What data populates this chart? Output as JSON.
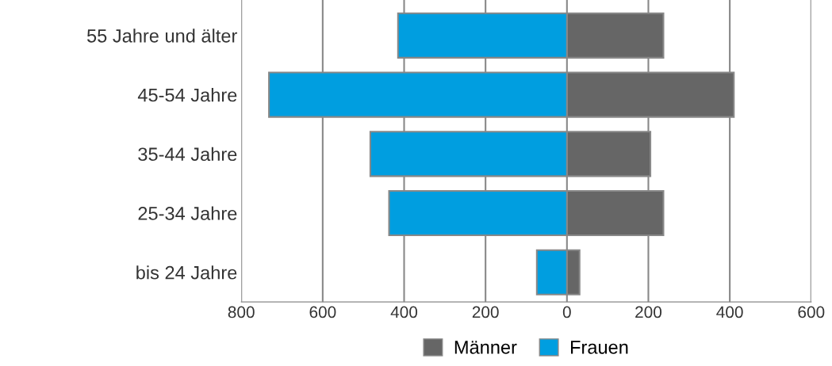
{
  "chart_data": {
    "type": "bar",
    "orientation": "horizontal",
    "stacked": true,
    "categories": [
      "55 Jahre und älter",
      "45-54 Jahre",
      "35-44 Jahre",
      "25-34 Jahre",
      "bis 24 Jahre"
    ],
    "series": [
      {
        "name": "Männer",
        "color": "#666666",
        "values": [
          237,
          410,
          205,
          237,
          31
        ]
      },
      {
        "name": "Frauen",
        "color": "#009ee0",
        "values": [
          -415,
          -732,
          -483,
          -437,
          -74
        ]
      }
    ],
    "xlim": [
      -800,
      600
    ],
    "xticks": [
      {
        "value": -800,
        "label": "800"
      },
      {
        "value": -600,
        "label": "600"
      },
      {
        "value": -400,
        "label": "400"
      },
      {
        "value": -200,
        "label": "200"
      },
      0,
      200,
      400,
      600
    ],
    "grid": "x",
    "legend": "bottom"
  }
}
